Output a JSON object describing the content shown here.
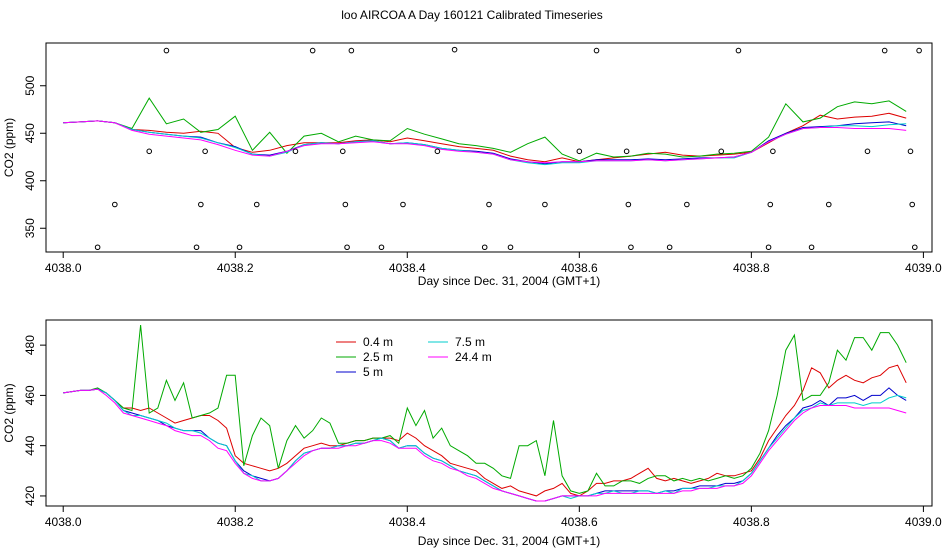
{
  "chart_data": [
    {
      "type": "line",
      "title": "loo AIRCOA A  Day 160121  Calibrated Timeseries",
      "xlabel": "Day since Dec. 31, 2004 (GMT+1)",
      "ylabel": "CO2 (ppm)",
      "xlim": [
        4037.98,
        4039.01
      ],
      "ylim": [
        325,
        545
      ],
      "x_ticks": [
        "4038.0",
        "4038.2",
        "4038.4",
        "4038.6",
        "4038.8",
        "4039.0"
      ],
      "y_ticks": [
        "350",
        "400",
        "450",
        "500"
      ],
      "series_x": [
        4038.0,
        4038.02,
        4038.04,
        4038.06,
        4038.08,
        4038.1,
        4038.12,
        4038.14,
        4038.16,
        4038.18,
        4038.2,
        4038.22,
        4038.24,
        4038.26,
        4038.28,
        4038.3,
        4038.32,
        4038.34,
        4038.36,
        4038.38,
        4038.4,
        4038.42,
        4038.44,
        4038.46,
        4038.48,
        4038.5,
        4038.52,
        4038.54,
        4038.56,
        4038.58,
        4038.6,
        4038.62,
        4038.64,
        4038.66,
        4038.68,
        4038.7,
        4038.72,
        4038.74,
        4038.76,
        4038.78,
        4038.8,
        4038.82,
        4038.84,
        4038.86,
        4038.88,
        4038.9,
        4038.92,
        4038.94,
        4038.96,
        4038.98
      ],
      "series": [
        {
          "name": "0.4 m",
          "color": "#dd0000",
          "values": [
            461,
            462,
            463,
            461,
            454,
            453,
            451,
            450,
            452,
            450,
            435,
            430,
            432,
            437,
            440,
            440,
            440,
            442,
            443,
            441,
            445,
            442,
            439,
            436,
            434,
            432,
            426,
            422,
            420,
            424,
            420,
            422,
            424,
            426,
            428,
            430,
            427,
            426,
            427,
            428,
            430,
            440,
            450,
            458,
            469,
            465,
            467,
            468,
            471,
            466
          ]
        },
        {
          "name": "2.5 m",
          "color": "#00aa00",
          "values": [
            461,
            462,
            463,
            461,
            455,
            487,
            460,
            465,
            451,
            454,
            468,
            432,
            451,
            429,
            447,
            450,
            441,
            447,
            443,
            442,
            455,
            449,
            444,
            439,
            437,
            434,
            430,
            439,
            446,
            428,
            421,
            429,
            425,
            426,
            429,
            428,
            425,
            426,
            428,
            429,
            431,
            446,
            481,
            462,
            466,
            478,
            483,
            481,
            484,
            473
          ]
        },
        {
          "name": "5 m",
          "color": "#0000cc",
          "values": [
            461,
            462,
            463,
            461,
            454,
            451,
            449,
            447,
            446,
            440,
            436,
            428,
            427,
            431,
            438,
            440,
            439,
            441,
            442,
            439,
            440,
            438,
            434,
            432,
            431,
            429,
            423,
            420,
            418,
            420,
            420,
            422,
            422,
            422,
            423,
            422,
            423,
            424,
            424,
            425,
            430,
            442,
            450,
            456,
            457,
            458,
            460,
            461,
            462,
            458
          ]
        },
        {
          "name": "7.5 m",
          "color": "#00cccc",
          "values": [
            461,
            462,
            463,
            461,
            454,
            451,
            449,
            447,
            445,
            440,
            435,
            428,
            426,
            430,
            438,
            440,
            439,
            441,
            442,
            439,
            440,
            438,
            434,
            432,
            430,
            428,
            422,
            419,
            417,
            419,
            419,
            421,
            421,
            421,
            422,
            421,
            422,
            423,
            424,
            424,
            430,
            441,
            449,
            455,
            456,
            458,
            458,
            457,
            459,
            460
          ]
        },
        {
          "name": "24.4 m",
          "color": "#ff00ff",
          "values": [
            461,
            462,
            463,
            461,
            453,
            449,
            447,
            445,
            443,
            438,
            432,
            427,
            426,
            431,
            437,
            439,
            439,
            440,
            441,
            439,
            439,
            437,
            433,
            431,
            430,
            428,
            422,
            420,
            419,
            420,
            420,
            421,
            421,
            421,
            422,
            421,
            422,
            423,
            424,
            425,
            430,
            441,
            449,
            455,
            456,
            456,
            455,
            455,
            455,
            453
          ]
        }
      ],
      "points_x": [
        4038.04,
        4038.06,
        4038.1,
        4038.12,
        4038.155,
        4038.16,
        4038.165,
        4038.205,
        4038.225,
        4038.27,
        4038.29,
        4038.325,
        4038.328,
        4038.33,
        4038.335,
        4038.37,
        4038.395,
        4038.435,
        4038.455,
        4038.49,
        4038.495,
        4038.52,
        4038.56,
        4038.6,
        4038.62,
        4038.655,
        4038.657,
        4038.66,
        4038.705,
        4038.725,
        4038.765,
        4038.785,
        4038.82,
        4038.822,
        4038.825,
        4038.87,
        4038.89,
        4038.935,
        4038.955,
        4038.985,
        4038.987,
        4038.99,
        4038.995
      ],
      "points_y": [
        330,
        375,
        431,
        537,
        330,
        375,
        431,
        330,
        375,
        431,
        537,
        431,
        375,
        330,
        537,
        330,
        375,
        431,
        538,
        330,
        375,
        330,
        375,
        431,
        537,
        431,
        375,
        330,
        330,
        375,
        431,
        537,
        330,
        375,
        431,
        330,
        375,
        431,
        537,
        431,
        375,
        330,
        537
      ]
    },
    {
      "type": "line",
      "xlabel": "Day since Dec. 31, 2004 (GMT+1)",
      "ylabel": "CO2 (ppm)",
      "xlim": [
        4037.98,
        4039.01
      ],
      "ylim": [
        416,
        490
      ],
      "x_ticks": [
        "4038.0",
        "4038.2",
        "4038.4",
        "4038.6",
        "4038.8",
        "4039.0"
      ],
      "y_ticks": [
        "420",
        "440",
        "460",
        "480"
      ],
      "legend_position": "top-left",
      "series_x": [
        4038.0,
        4038.01,
        4038.02,
        4038.03,
        4038.04,
        4038.05,
        4038.06,
        4038.07,
        4038.08,
        4038.09,
        4038.1,
        4038.11,
        4038.12,
        4038.13,
        4038.14,
        4038.15,
        4038.16,
        4038.17,
        4038.18,
        4038.19,
        4038.2,
        4038.21,
        4038.22,
        4038.23,
        4038.24,
        4038.25,
        4038.26,
        4038.27,
        4038.28,
        4038.29,
        4038.3,
        4038.31,
        4038.32,
        4038.33,
        4038.34,
        4038.35,
        4038.36,
        4038.37,
        4038.38,
        4038.39,
        4038.4,
        4038.41,
        4038.42,
        4038.43,
        4038.44,
        4038.45,
        4038.46,
        4038.47,
        4038.48,
        4038.49,
        4038.5,
        4038.51,
        4038.52,
        4038.53,
        4038.54,
        4038.55,
        4038.56,
        4038.57,
        4038.58,
        4038.59,
        4038.6,
        4038.61,
        4038.62,
        4038.63,
        4038.64,
        4038.65,
        4038.66,
        4038.67,
        4038.68,
        4038.69,
        4038.7,
        4038.71,
        4038.72,
        4038.73,
        4038.74,
        4038.75,
        4038.76,
        4038.77,
        4038.78,
        4038.79,
        4038.8,
        4038.81,
        4038.82,
        4038.83,
        4038.84,
        4038.85,
        4038.86,
        4038.87,
        4038.88,
        4038.89,
        4038.9,
        4038.91,
        4038.92,
        4038.93,
        4038.94,
        4038.95,
        4038.96,
        4038.97,
        4038.98
      ],
      "series": [
        {
          "name": "0.4 m",
          "color": "#dd0000",
          "values": [
            461,
            461.5,
            462,
            462,
            462.5,
            461,
            458,
            455,
            455,
            454,
            455,
            453,
            451,
            449,
            450,
            451,
            452,
            452,
            450,
            447,
            436,
            433,
            432,
            431,
            430,
            431,
            433,
            436,
            439,
            440,
            441,
            440,
            440,
            441,
            442,
            442,
            443,
            443,
            443,
            442,
            445,
            443,
            440,
            438,
            436,
            433,
            432,
            431,
            430,
            427,
            425,
            423,
            424,
            422,
            421,
            420,
            422,
            423,
            425,
            421,
            420,
            422,
            425,
            425,
            426,
            426,
            427,
            429,
            431,
            427,
            426,
            427,
            426,
            425,
            426,
            427,
            429,
            428,
            428,
            429,
            430,
            435,
            442,
            447,
            452,
            456,
            462,
            471,
            469,
            463,
            466,
            468,
            466,
            465,
            467,
            468,
            471,
            472,
            465
          ]
        },
        {
          "name": "2.5 m",
          "color": "#00aa00",
          "values": [
            461,
            461.5,
            462,
            462,
            463,
            461,
            458,
            455,
            454,
            488,
            453,
            455,
            466,
            458,
            465,
            451,
            452,
            453,
            455,
            468,
            468,
            432,
            444,
            451,
            448,
            431,
            442,
            448,
            443,
            446,
            451,
            449,
            441,
            441,
            442,
            442,
            443,
            443,
            444,
            441,
            455,
            448,
            454,
            443,
            447,
            440,
            438,
            436,
            433,
            433,
            431,
            428,
            427,
            440,
            440,
            442,
            428,
            450,
            428,
            422,
            421,
            422,
            429,
            424,
            424,
            426,
            426,
            425,
            427,
            428,
            428,
            426,
            427,
            426,
            427,
            426,
            427,
            428,
            427,
            428,
            431,
            437,
            446,
            460,
            478,
            484,
            458,
            460,
            460,
            465,
            478,
            474,
            483,
            483,
            478,
            485,
            485,
            480,
            473
          ]
        },
        {
          "name": "5 m",
          "color": "#0000cc",
          "values": [
            461,
            461.5,
            462,
            462,
            462.5,
            461,
            458,
            454,
            453,
            452,
            451,
            450,
            448,
            447,
            446,
            446,
            446,
            443,
            441,
            440,
            434,
            430,
            428,
            427,
            426,
            427,
            430,
            434,
            437,
            438,
            439,
            439,
            440,
            440,
            441,
            441,
            442,
            443,
            442,
            439,
            440,
            440,
            437,
            435,
            434,
            432,
            430,
            429,
            428,
            426,
            424,
            422,
            421,
            420,
            419,
            418,
            418,
            419,
            420,
            420,
            420,
            420,
            421,
            422,
            422,
            422,
            422,
            422,
            422,
            421,
            422,
            422,
            423,
            423,
            424,
            424,
            424,
            425,
            425,
            426,
            429,
            434,
            439,
            444,
            448,
            451,
            455,
            456,
            458,
            456,
            459,
            459,
            460,
            458,
            460,
            460,
            463,
            460,
            458
          ]
        },
        {
          "name": "7.5 m",
          "color": "#00cccc",
          "values": [
            461,
            461.5,
            462,
            462,
            462.5,
            461,
            458,
            454,
            452,
            452,
            451,
            450,
            449,
            447,
            446,
            446,
            445,
            443,
            441,
            440,
            434,
            429,
            428,
            426,
            426,
            427,
            430,
            434,
            437,
            438,
            439,
            439,
            440,
            440,
            441,
            441,
            442,
            443,
            442,
            439,
            440,
            440,
            437,
            435,
            434,
            432,
            430,
            429,
            428,
            426,
            424,
            422,
            421,
            420,
            419,
            418,
            418,
            419,
            420,
            419,
            420,
            420,
            421,
            421,
            422,
            421,
            421,
            422,
            422,
            421,
            422,
            421,
            423,
            423,
            423,
            423,
            424,
            424,
            424,
            426,
            429,
            434,
            439,
            443,
            447,
            451,
            454,
            455,
            457,
            456,
            457,
            457,
            457,
            456,
            457,
            457,
            459,
            460,
            459
          ]
        },
        {
          "name": "24.4 m",
          "color": "#ff00ff",
          "values": [
            461,
            461.5,
            462,
            462,
            462.5,
            460,
            457,
            453,
            452,
            451,
            450,
            449,
            448,
            446,
            445,
            444,
            444,
            442,
            439,
            438,
            433,
            429,
            427,
            426,
            426,
            427,
            430,
            433,
            436,
            438,
            439,
            439,
            439,
            440,
            440,
            441,
            442,
            442,
            441,
            439,
            439,
            439,
            436,
            434,
            433,
            431,
            430,
            428,
            427,
            425,
            423,
            422,
            421,
            420,
            419,
            418,
            418,
            419,
            420,
            420,
            420,
            420,
            420,
            421,
            421,
            421,
            421,
            421,
            421,
            421,
            421,
            421,
            422,
            422,
            423,
            423,
            423,
            424,
            424,
            425,
            428,
            433,
            438,
            442,
            446,
            450,
            453,
            455,
            456,
            456,
            456,
            456,
            455,
            455,
            455,
            455,
            455,
            454,
            453
          ]
        }
      ]
    }
  ]
}
